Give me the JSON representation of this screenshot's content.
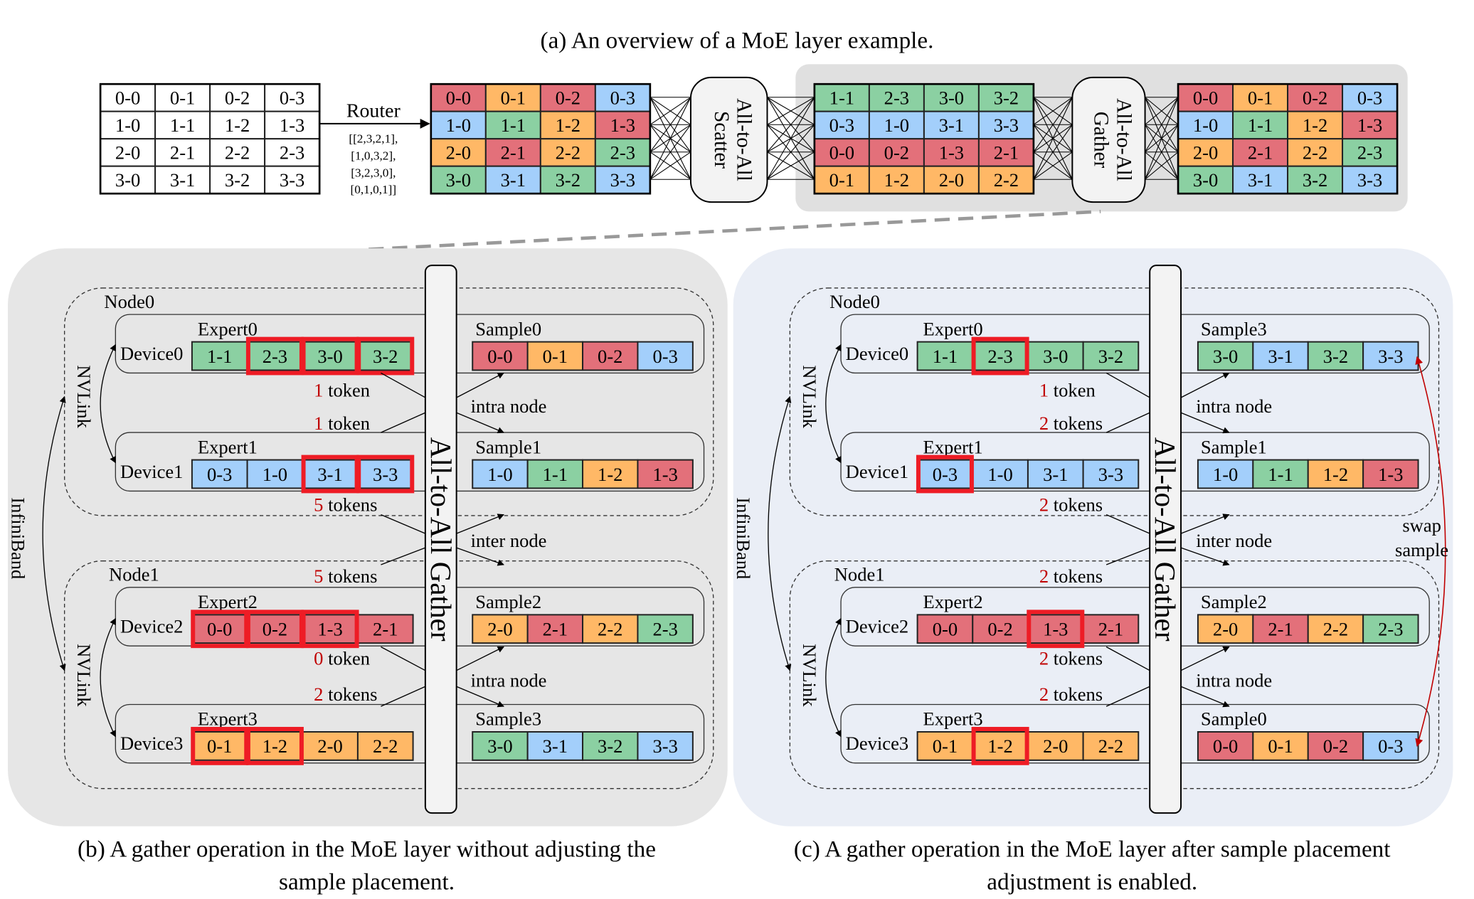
{
  "palette": {
    "red": "#e3707a",
    "orange": "#ffb866",
    "green": "#8bd0a2",
    "blue": "#a3cffb",
    "highlight": "#ee1c25",
    "token_count": "#c00000",
    "panel_b_bg": "#e6e6e6",
    "panel_c_bg": "#eaeef6",
    "top_panel_bg": "#e0e0e0",
    "box_fill": "#f3f3f3"
  },
  "overview": {
    "title": "(a) An overview of a MoE layer example.",
    "input_table": [
      [
        "0-0",
        "0-1",
        "0-2",
        "0-3"
      ],
      [
        "1-0",
        "1-1",
        "1-2",
        "1-3"
      ],
      [
        "2-0",
        "2-1",
        "2-2",
        "2-3"
      ],
      [
        "3-0",
        "3-1",
        "3-2",
        "3-3"
      ]
    ],
    "router_label": "Router",
    "routing": [
      "[[2,3,2,1],",
      "[1,0,3,2],",
      "[3,2,3,0],",
      "[0,1,0,1]]"
    ],
    "routed_grid": {
      "labels": [
        [
          "0-0",
          "0-1",
          "0-2",
          "0-3"
        ],
        [
          "1-0",
          "1-1",
          "1-2",
          "1-3"
        ],
        [
          "2-0",
          "2-1",
          "2-2",
          "2-3"
        ],
        [
          "3-0",
          "3-1",
          "3-2",
          "3-3"
        ]
      ],
      "colors": [
        [
          "red",
          "orange",
          "red",
          "blue"
        ],
        [
          "blue",
          "green",
          "orange",
          "red"
        ],
        [
          "orange",
          "red",
          "orange",
          "green"
        ],
        [
          "green",
          "blue",
          "green",
          "blue"
        ]
      ]
    },
    "scatter_box": [
      "All-to-All",
      "Scatter"
    ],
    "expert_grid": {
      "labels": [
        [
          "1-1",
          "2-3",
          "3-0",
          "3-2"
        ],
        [
          "0-3",
          "1-0",
          "3-1",
          "3-3"
        ],
        [
          "0-0",
          "0-2",
          "1-3",
          "2-1"
        ],
        [
          "0-1",
          "1-2",
          "2-0",
          "2-2"
        ]
      ],
      "colors": [
        [
          "green",
          "green",
          "green",
          "green"
        ],
        [
          "blue",
          "blue",
          "blue",
          "blue"
        ],
        [
          "red",
          "red",
          "red",
          "red"
        ],
        [
          "orange",
          "orange",
          "orange",
          "orange"
        ]
      ]
    },
    "gather_box": [
      "All-to-All",
      "Gather"
    ],
    "output_grid": {
      "labels": [
        [
          "0-0",
          "0-1",
          "0-2",
          "0-3"
        ],
        [
          "1-0",
          "1-1",
          "1-2",
          "1-3"
        ],
        [
          "2-0",
          "2-1",
          "2-2",
          "2-3"
        ],
        [
          "3-0",
          "3-1",
          "3-2",
          "3-3"
        ]
      ],
      "colors": [
        [
          "red",
          "orange",
          "red",
          "blue"
        ],
        [
          "blue",
          "green",
          "orange",
          "red"
        ],
        [
          "orange",
          "red",
          "orange",
          "green"
        ],
        [
          "green",
          "blue",
          "green",
          "blue"
        ]
      ]
    }
  },
  "panels": [
    {
      "caption": [
        "(b) A gather operation in the MoE layer without adjusting the",
        "sample placement."
      ],
      "gather_label": "All-to-All Gather",
      "infiniband": "InfiniBand",
      "nvlink": "NVLink",
      "nodes": [
        "Node0",
        "Node1"
      ],
      "devices": [
        {
          "device": "Device0",
          "expert": "Expert0",
          "cells": [
            "1-1",
            "2-3",
            "3-0",
            "3-2"
          ],
          "colors": [
            "green",
            "green",
            "green",
            "green"
          ],
          "highlight": [
            false,
            true,
            true,
            true
          ]
        },
        {
          "device": "Device1",
          "expert": "Expert1",
          "cells": [
            "0-3",
            "1-0",
            "3-1",
            "3-3"
          ],
          "colors": [
            "blue",
            "blue",
            "blue",
            "blue"
          ],
          "highlight": [
            false,
            false,
            true,
            true
          ]
        },
        {
          "device": "Device2",
          "expert": "Expert2",
          "cells": [
            "0-0",
            "0-2",
            "1-3",
            "2-1"
          ],
          "colors": [
            "red",
            "red",
            "red",
            "red"
          ],
          "highlight": [
            true,
            true,
            true,
            false
          ]
        },
        {
          "device": "Device3",
          "expert": "Expert3",
          "cells": [
            "0-1",
            "1-2",
            "2-0",
            "2-2"
          ],
          "colors": [
            "orange",
            "orange",
            "orange",
            "orange"
          ],
          "highlight": [
            true,
            true,
            false,
            false
          ]
        }
      ],
      "samples": [
        {
          "label": "Sample0",
          "cells": [
            "0-0",
            "0-1",
            "0-2",
            "0-3"
          ],
          "colors": [
            "red",
            "orange",
            "red",
            "blue"
          ]
        },
        {
          "label": "Sample1",
          "cells": [
            "1-0",
            "1-1",
            "1-2",
            "1-3"
          ],
          "colors": [
            "blue",
            "green",
            "orange",
            "red"
          ]
        },
        {
          "label": "Sample2",
          "cells": [
            "2-0",
            "2-1",
            "2-2",
            "2-3"
          ],
          "colors": [
            "orange",
            "red",
            "orange",
            "green"
          ]
        },
        {
          "label": "Sample3",
          "cells": [
            "3-0",
            "3-1",
            "3-2",
            "3-3"
          ],
          "colors": [
            "green",
            "blue",
            "green",
            "blue"
          ]
        }
      ],
      "tokens": [
        {
          "count": "1",
          "unit": " token"
        },
        {
          "count": "1",
          "unit": " token"
        },
        {
          "count": "5",
          "unit": " tokens"
        },
        {
          "count": "5",
          "unit": " tokens"
        },
        {
          "count": "0",
          "unit": " token"
        },
        {
          "count": "2",
          "unit": " tokens"
        }
      ],
      "links": [
        "intra node",
        "inter node",
        "intra node"
      ]
    },
    {
      "caption": [
        "(c) A gather operation in the MoE layer after sample placement",
        "adjustment is enabled."
      ],
      "gather_label": "All-to-All Gather",
      "infiniband": "InfiniBand",
      "nvlink": "NVLink",
      "nodes": [
        "Node0",
        "Node1"
      ],
      "devices": [
        {
          "device": "Device0",
          "expert": "Expert0",
          "cells": [
            "1-1",
            "2-3",
            "3-0",
            "3-2"
          ],
          "colors": [
            "green",
            "green",
            "green",
            "green"
          ],
          "highlight": [
            false,
            true,
            false,
            false
          ]
        },
        {
          "device": "Device1",
          "expert": "Expert1",
          "cells": [
            "0-3",
            "1-0",
            "3-1",
            "3-3"
          ],
          "colors": [
            "blue",
            "blue",
            "blue",
            "blue"
          ],
          "highlight": [
            true,
            false,
            false,
            false
          ]
        },
        {
          "device": "Device2",
          "expert": "Expert2",
          "cells": [
            "0-0",
            "0-2",
            "1-3",
            "2-1"
          ],
          "colors": [
            "red",
            "red",
            "red",
            "red"
          ],
          "highlight": [
            false,
            false,
            true,
            false
          ]
        },
        {
          "device": "Device3",
          "expert": "Expert3",
          "cells": [
            "0-1",
            "1-2",
            "2-0",
            "2-2"
          ],
          "colors": [
            "orange",
            "orange",
            "orange",
            "orange"
          ],
          "highlight": [
            false,
            true,
            false,
            false
          ]
        }
      ],
      "samples": [
        {
          "label": "Sample3",
          "cells": [
            "3-0",
            "3-1",
            "3-2",
            "3-3"
          ],
          "colors": [
            "green",
            "blue",
            "green",
            "blue"
          ]
        },
        {
          "label": "Sample1",
          "cells": [
            "1-0",
            "1-1",
            "1-2",
            "1-3"
          ],
          "colors": [
            "blue",
            "green",
            "orange",
            "red"
          ]
        },
        {
          "label": "Sample2",
          "cells": [
            "2-0",
            "2-1",
            "2-2",
            "2-3"
          ],
          "colors": [
            "orange",
            "red",
            "orange",
            "green"
          ]
        },
        {
          "label": "Sample0",
          "cells": [
            "0-0",
            "0-1",
            "0-2",
            "0-3"
          ],
          "colors": [
            "red",
            "orange",
            "red",
            "blue"
          ]
        }
      ],
      "tokens": [
        {
          "count": "1",
          "unit": " token"
        },
        {
          "count": "2",
          "unit": " tokens"
        },
        {
          "count": "2",
          "unit": " tokens"
        },
        {
          "count": "2",
          "unit": " tokens"
        },
        {
          "count": "2",
          "unit": " tokens"
        },
        {
          "count": "2",
          "unit": " tokens"
        }
      ],
      "links": [
        "intra node",
        "inter node",
        "intra node"
      ],
      "swap_label": [
        "swap",
        "sample"
      ]
    }
  ]
}
